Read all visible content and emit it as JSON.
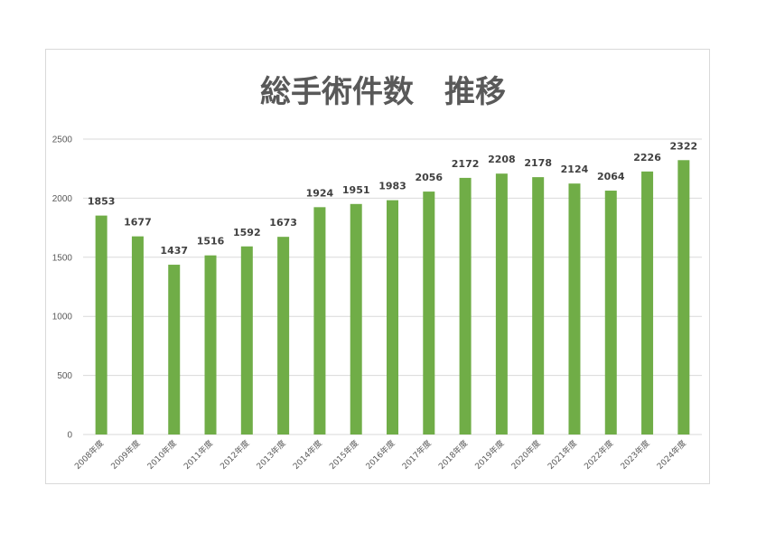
{
  "chart_data": {
    "type": "bar",
    "title": "総手術件数　推移",
    "categories": [
      "2008年度",
      "2009年度",
      "2010年度",
      "2011年度",
      "2012年度",
      "2013年度",
      "2014年度",
      "2015年度",
      "2016年度",
      "2017年度",
      "2018年度",
      "2019年度",
      "2020年度",
      "2021年度",
      "2022年度",
      "2023年度",
      "2024年度"
    ],
    "values": [
      1853,
      1677,
      1437,
      1516,
      1592,
      1673,
      1924,
      1951,
      1983,
      2056,
      2172,
      2208,
      2178,
      2124,
      2064,
      2226,
      2322
    ],
    "xlabel": "",
    "ylabel": "",
    "ylim": [
      0,
      2500
    ],
    "yticks": [
      0,
      500,
      1000,
      1500,
      2000,
      2500
    ],
    "grid": true,
    "legend": "none",
    "bar_color": "#70ad47",
    "grid_color": "#d9d9d9"
  }
}
